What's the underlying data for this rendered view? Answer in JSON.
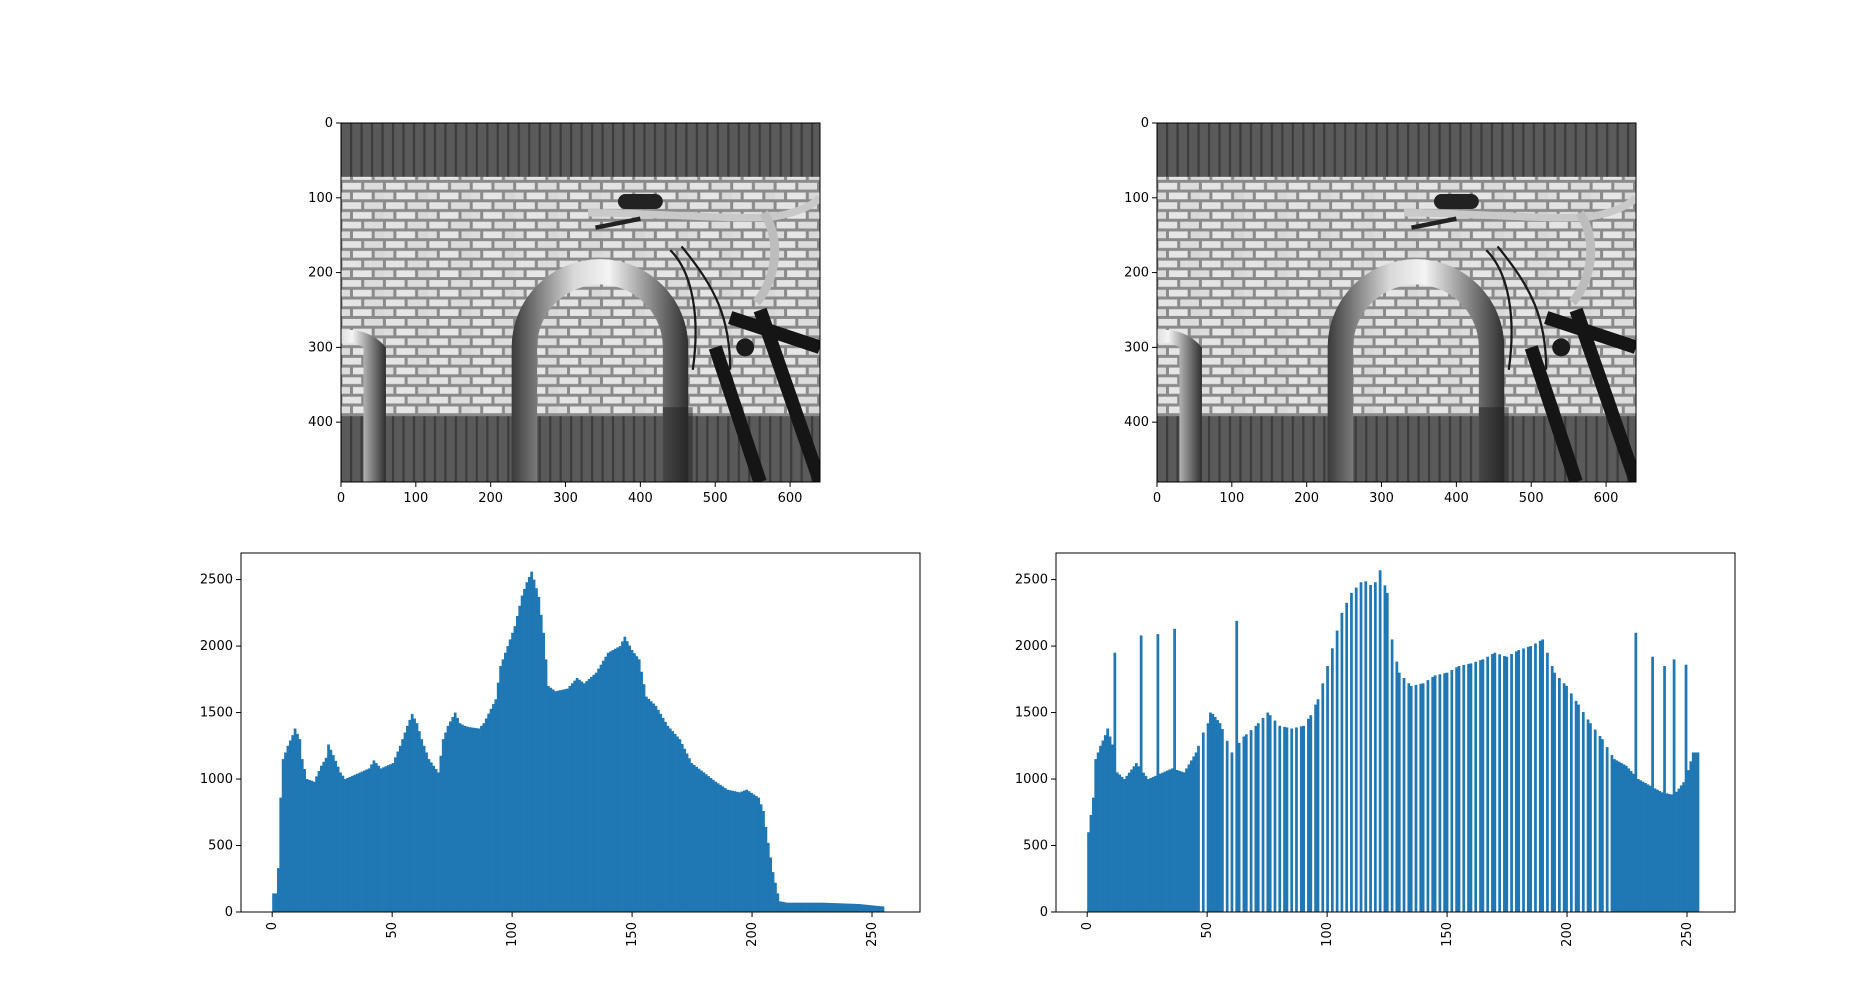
{
  "figure": {
    "background": "#ffffff",
    "bar_color": "#1f77b4",
    "axes_color": "#000000"
  },
  "images": [
    {
      "name": "original-image",
      "content": "grayscale photo: brick wall, metal bike rack, bicycle handlebar",
      "xticks": [
        "0",
        "100",
        "200",
        "300",
        "400",
        "500",
        "600"
      ],
      "yticks": [
        "0",
        "100",
        "200",
        "300",
        "400"
      ]
    },
    {
      "name": "equalized-image",
      "content": "grayscale photo: brick wall, metal bike rack, bicycle handlebar (histogram equalized)",
      "xticks": [
        "0",
        "100",
        "200",
        "300",
        "400",
        "500",
        "600"
      ],
      "yticks": [
        "0",
        "100",
        "200",
        "300",
        "400"
      ]
    }
  ],
  "chart_data": [
    {
      "type": "bar",
      "name": "original-histogram",
      "xlim": [
        -13,
        270
      ],
      "ylim": [
        0,
        2700
      ],
      "xticks": [
        "0",
        "50",
        "100",
        "150",
        "200",
        "250"
      ],
      "yticks": [
        "0",
        "500",
        "1000",
        "1500",
        "2000",
        "2500"
      ],
      "xtick_rotation": 90,
      "bins": 256,
      "keypoints": [
        [
          0,
          140
        ],
        [
          1,
          140
        ],
        [
          2,
          330
        ],
        [
          3,
          860
        ],
        [
          4,
          1150
        ],
        [
          6,
          1250
        ],
        [
          8,
          1330
        ],
        [
          9,
          1380
        ],
        [
          11,
          1300
        ],
        [
          12,
          1150
        ],
        [
          14,
          1000
        ],
        [
          17,
          980
        ],
        [
          20,
          1100
        ],
        [
          22,
          1160
        ],
        [
          23,
          1260
        ],
        [
          25,
          1180
        ],
        [
          28,
          1050
        ],
        [
          30,
          1000
        ],
        [
          35,
          1040
        ],
        [
          40,
          1080
        ],
        [
          42,
          1140
        ],
        [
          45,
          1080
        ],
        [
          50,
          1120
        ],
        [
          53,
          1250
        ],
        [
          56,
          1400
        ],
        [
          58,
          1490
        ],
        [
          60,
          1420
        ],
        [
          62,
          1300
        ],
        [
          65,
          1150
        ],
        [
          69,
          1050
        ],
        [
          71,
          1300
        ],
        [
          73,
          1400
        ],
        [
          76,
          1500
        ],
        [
          78,
          1420
        ],
        [
          80,
          1400
        ],
        [
          82,
          1390
        ],
        [
          86,
          1380
        ],
        [
          88,
          1420
        ],
        [
          93,
          1600
        ],
        [
          95,
          1850
        ],
        [
          98,
          2000
        ],
        [
          101,
          2150
        ],
        [
          104,
          2380
        ],
        [
          106,
          2480
        ],
        [
          108,
          2560
        ],
        [
          109,
          2500
        ],
        [
          111,
          2370
        ],
        [
          113,
          2100
        ],
        [
          115,
          1700
        ],
        [
          118,
          1660
        ],
        [
          123,
          1680
        ],
        [
          127,
          1760
        ],
        [
          130,
          1720
        ],
        [
          135,
          1800
        ],
        [
          140,
          1950
        ],
        [
          145,
          2000
        ],
        [
          147,
          2070
        ],
        [
          150,
          1970
        ],
        [
          153,
          1900
        ],
        [
          156,
          1620
        ],
        [
          160,
          1550
        ],
        [
          165,
          1400
        ],
        [
          170,
          1300
        ],
        [
          175,
          1120
        ],
        [
          180,
          1050
        ],
        [
          185,
          980
        ],
        [
          190,
          920
        ],
        [
          195,
          900
        ],
        [
          198,
          920
        ],
        [
          203,
          860
        ],
        [
          205,
          760
        ],
        [
          207,
          520
        ],
        [
          209,
          300
        ],
        [
          211,
          140
        ],
        [
          212,
          80
        ],
        [
          215,
          70
        ],
        [
          230,
          70
        ],
        [
          245,
          60
        ],
        [
          256,
          40
        ]
      ],
      "spikes": []
    },
    {
      "type": "bar",
      "name": "equalized-histogram",
      "xlim": [
        -13,
        270
      ],
      "ylim": [
        0,
        2700
      ],
      "xticks": [
        "0",
        "50",
        "100",
        "150",
        "200",
        "250"
      ],
      "yticks": [
        "0",
        "500",
        "1000",
        "1500",
        "2000",
        "2500"
      ],
      "xtick_rotation": 90,
      "bins": 256,
      "keypoints": [
        [
          0,
          600
        ],
        [
          2,
          860
        ],
        [
          3,
          1150
        ],
        [
          5,
          1250
        ],
        [
          7,
          1330
        ],
        [
          8,
          1380
        ],
        [
          10,
          1260
        ],
        [
          12,
          1050
        ],
        [
          15,
          1000
        ],
        [
          20,
          1120
        ],
        [
          25,
          1000
        ],
        [
          30,
          1040
        ],
        [
          35,
          1080
        ],
        [
          40,
          1050
        ],
        [
          45,
          1200
        ],
        [
          48,
          1350
        ],
        [
          52,
          1490
        ],
        [
          55,
          1420
        ],
        [
          60,
          1200
        ],
        [
          65,
          1320
        ],
        [
          70,
          1400
        ],
        [
          75,
          1500
        ],
        [
          80,
          1400
        ],
        [
          85,
          1380
        ],
        [
          90,
          1400
        ],
        [
          93,
          1480
        ],
        [
          96,
          1600
        ],
        [
          98,
          1720
        ],
        [
          100,
          1850
        ],
        [
          103,
          2050
        ],
        [
          106,
          2250
        ],
        [
          110,
          2400
        ],
        [
          115,
          2500
        ],
        [
          118,
          2460
        ],
        [
          120,
          2480
        ],
        [
          122,
          2570
        ],
        [
          125,
          2400
        ],
        [
          127,
          2050
        ],
        [
          130,
          1800
        ],
        [
          135,
          1700
        ],
        [
          140,
          1720
        ],
        [
          145,
          1780
        ],
        [
          150,
          1800
        ],
        [
          155,
          1850
        ],
        [
          160,
          1870
        ],
        [
          165,
          1900
        ],
        [
          170,
          1950
        ],
        [
          175,
          1920
        ],
        [
          180,
          1970
        ],
        [
          185,
          2000
        ],
        [
          190,
          2050
        ],
        [
          195,
          1800
        ],
        [
          200,
          1700
        ],
        [
          205,
          1560
        ],
        [
          210,
          1420
        ],
        [
          215,
          1300
        ],
        [
          220,
          1150
        ],
        [
          225,
          1100
        ],
        [
          230,
          1000
        ],
        [
          235,
          950
        ],
        [
          240,
          900
        ],
        [
          245,
          880
        ],
        [
          250,
          1000
        ],
        [
          253,
          1200
        ],
        [
          256,
          1200
        ]
      ],
      "spikes": [
        [
          11,
          1950
        ],
        [
          22,
          2080
        ],
        [
          29,
          2090
        ],
        [
          36,
          2130
        ],
        [
          51,
          1500
        ],
        [
          62,
          2190
        ],
        [
          229,
          2100
        ],
        [
          236,
          1920
        ],
        [
          241,
          1850
        ],
        [
          245,
          1900
        ],
        [
          250,
          1860
        ]
      ],
      "gaps": [
        47,
        49,
        57,
        59,
        61,
        64,
        67,
        69,
        72,
        74,
        77,
        79,
        81,
        84,
        86,
        88,
        91,
        94,
        97,
        99,
        101,
        103,
        105,
        107,
        109,
        111,
        113,
        115,
        117,
        119,
        121,
        123,
        126,
        128,
        131,
        133,
        136,
        138,
        141,
        143,
        146,
        148,
        151,
        153,
        156,
        158,
        161,
        163,
        166,
        168,
        171,
        173,
        176,
        178,
        181,
        183,
        186,
        188,
        191,
        193,
        196,
        198,
        201,
        203,
        206,
        208,
        211,
        213,
        216,
        218
      ]
    }
  ]
}
